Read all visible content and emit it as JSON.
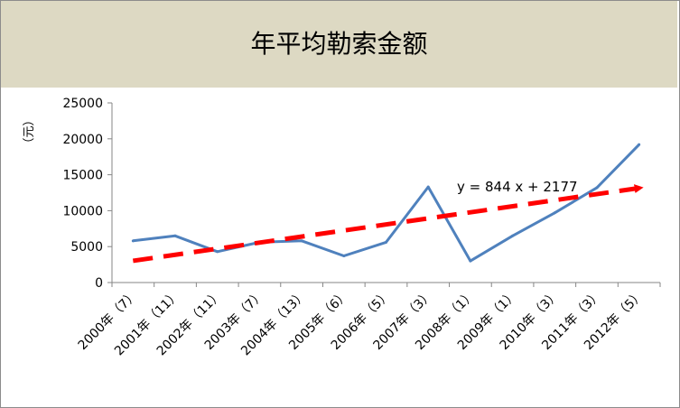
{
  "chart_data": {
    "type": "line",
    "title": "年平均勒索金额",
    "ylabel": "（元）",
    "xlabel": "",
    "ylim": [
      0,
      25000
    ],
    "yticks": [
      0,
      5000,
      10000,
      15000,
      20000,
      25000
    ],
    "grid": false,
    "categories": [
      "2000年（7）",
      "2001年（11）",
      "2002年（11）",
      "2003年（7）",
      "2004年（13）",
      "2005年（6）",
      "2006年（5）",
      "2007年（3）",
      "2008年（1）",
      "2009年（1）",
      "2010年（3）",
      "2011年（3）",
      "2012年（5）"
    ],
    "series": [
      {
        "values": [
          5800,
          6500,
          4300,
          5600,
          5800,
          3700,
          5600,
          13300,
          3000,
          6500,
          9700,
          13200,
          19200
        ],
        "color": "#4f81bd"
      }
    ],
    "trendline": {
      "equation": "y = 844 x + 2177",
      "slope": 844,
      "intercept": 2177,
      "color": "#ff0000",
      "style": "dashed-arrow"
    }
  }
}
